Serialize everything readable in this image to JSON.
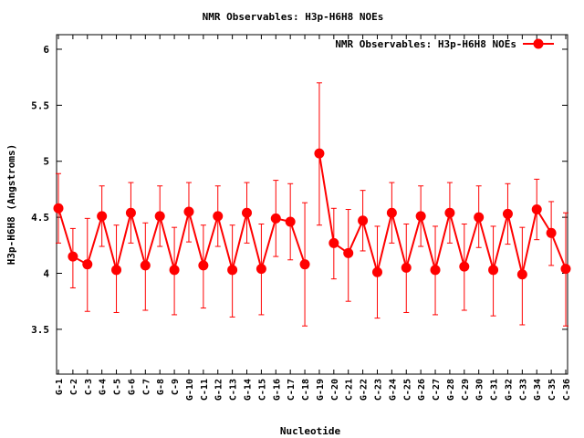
{
  "chart_data": {
    "type": "line",
    "title": "NMR Observables: H3p-H6H8 NOEs",
    "xlabel": "Nucleotide",
    "ylabel": "H3p-H6H8 (Angstroms)",
    "ylim": [
      3.1,
      6.13
    ],
    "yticks": [
      3.5,
      4,
      4.5,
      5,
      5.5,
      6
    ],
    "grid": false,
    "legend_position": "top-right",
    "colors": {
      "series": "#ff0000",
      "axis": "#000000"
    },
    "series": [
      {
        "name": "NMR Observables: H3p-H6H8 NOEs",
        "points": [
          {
            "label": "G-1",
            "y": 4.58,
            "yerr_low": 4.27,
            "yerr_high": 4.89
          },
          {
            "label": "C-2",
            "y": 4.15,
            "yerr_low": 3.87,
            "yerr_high": 4.4
          },
          {
            "label": "C-3",
            "y": 4.08,
            "yerr_low": 3.66,
            "yerr_high": 4.49
          },
          {
            "label": "G-4",
            "y": 4.51,
            "yerr_low": 4.24,
            "yerr_high": 4.78
          },
          {
            "label": "C-5",
            "y": 4.03,
            "yerr_low": 3.65,
            "yerr_high": 4.43
          },
          {
            "label": "G-6",
            "y": 4.54,
            "yerr_low": 4.27,
            "yerr_high": 4.81
          },
          {
            "label": "C-7",
            "y": 4.07,
            "yerr_low": 3.67,
            "yerr_high": 4.45
          },
          {
            "label": "G-8",
            "y": 4.51,
            "yerr_low": 4.24,
            "yerr_high": 4.78
          },
          {
            "label": "C-9",
            "y": 4.03,
            "yerr_low": 3.63,
            "yerr_high": 4.41
          },
          {
            "label": "G-10",
            "y": 4.55,
            "yerr_low": 4.28,
            "yerr_high": 4.81
          },
          {
            "label": "C-11",
            "y": 4.07,
            "yerr_low": 3.69,
            "yerr_high": 4.43
          },
          {
            "label": "G-12",
            "y": 4.51,
            "yerr_low": 4.24,
            "yerr_high": 4.78
          },
          {
            "label": "C-13",
            "y": 4.03,
            "yerr_low": 3.61,
            "yerr_high": 4.43
          },
          {
            "label": "G-14",
            "y": 4.54,
            "yerr_low": 4.27,
            "yerr_high": 4.81
          },
          {
            "label": "C-15",
            "y": 4.04,
            "yerr_low": 3.63,
            "yerr_high": 4.44
          },
          {
            "label": "G-16",
            "y": 4.49,
            "yerr_low": 4.15,
            "yerr_high": 4.83
          },
          {
            "label": "C-17",
            "y": 4.46,
            "yerr_low": 4.12,
            "yerr_high": 4.8
          },
          {
            "label": "C-18",
            "y": 4.08,
            "yerr_low": 3.53,
            "yerr_high": 4.63
          },
          {
            "label": "G-19",
            "y": 5.07,
            "yerr_low": 4.43,
            "yerr_high": 5.7
          },
          {
            "label": "C-20",
            "y": 4.27,
            "yerr_low": 3.95,
            "yerr_high": 4.58
          },
          {
            "label": "C-21",
            "y": 4.18,
            "yerr_low": 3.75,
            "yerr_high": 4.57
          },
          {
            "label": "G-22",
            "y": 4.47,
            "yerr_low": 4.2,
            "yerr_high": 4.74
          },
          {
            "label": "C-23",
            "y": 4.01,
            "yerr_low": 3.6,
            "yerr_high": 4.42
          },
          {
            "label": "G-24",
            "y": 4.54,
            "yerr_low": 4.27,
            "yerr_high": 4.81
          },
          {
            "label": "C-25",
            "y": 4.05,
            "yerr_low": 3.65,
            "yerr_high": 4.44
          },
          {
            "label": "G-26",
            "y": 4.51,
            "yerr_low": 4.24,
            "yerr_high": 4.78
          },
          {
            "label": "C-27",
            "y": 4.03,
            "yerr_low": 3.63,
            "yerr_high": 4.42
          },
          {
            "label": "G-28",
            "y": 4.54,
            "yerr_low": 4.27,
            "yerr_high": 4.81
          },
          {
            "label": "C-29",
            "y": 4.06,
            "yerr_low": 3.67,
            "yerr_high": 4.44
          },
          {
            "label": "G-30",
            "y": 4.5,
            "yerr_low": 4.23,
            "yerr_high": 4.78
          },
          {
            "label": "C-31",
            "y": 4.03,
            "yerr_low": 3.62,
            "yerr_high": 4.42
          },
          {
            "label": "G-32",
            "y": 4.53,
            "yerr_low": 4.26,
            "yerr_high": 4.8
          },
          {
            "label": "C-33",
            "y": 3.99,
            "yerr_low": 3.54,
            "yerr_high": 4.41
          },
          {
            "label": "G-34",
            "y": 4.57,
            "yerr_low": 4.3,
            "yerr_high": 4.84
          },
          {
            "label": "C-35",
            "y": 4.36,
            "yerr_low": 4.07,
            "yerr_high": 4.64
          },
          {
            "label": "C-36",
            "y": 4.04,
            "yerr_low": 3.53,
            "yerr_high": 4.54
          }
        ]
      }
    ]
  }
}
